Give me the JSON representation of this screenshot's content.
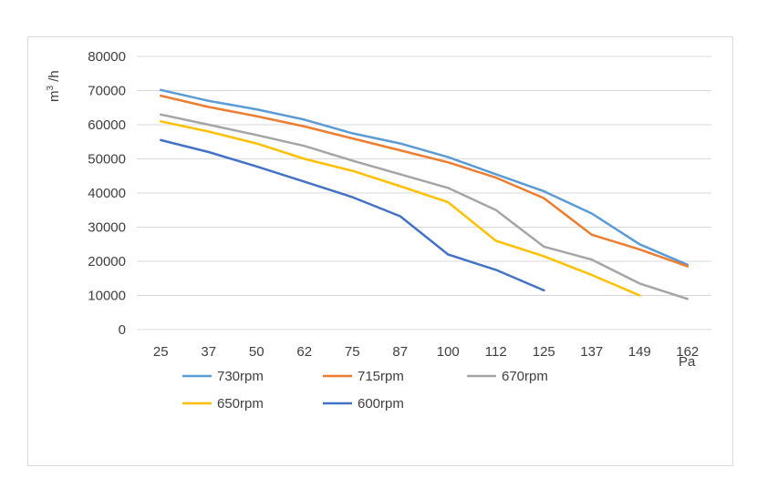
{
  "chart_data": {
    "type": "line",
    "title": "",
    "ylabel": "m³ /h",
    "ylabel_base": "m",
    "ylabel_sup": "3",
    "ylabel_rest": " /h",
    "xlabel": "Pa",
    "ylim": [
      0,
      80000
    ],
    "yticks": [
      "0",
      "10000",
      "20000",
      "30000",
      "40000",
      "50000",
      "60000",
      "70000",
      "80000"
    ],
    "categories": [
      "25",
      "37",
      "50",
      "62",
      "75",
      "87",
      "100",
      "112",
      "125",
      "137",
      "149",
      "162"
    ],
    "grid": true,
    "legend_position": "bottom",
    "series": [
      {
        "name": "730rpm",
        "color": "#5b9bd5",
        "values": [
          70200,
          67000,
          64500,
          61500,
          57500,
          54500,
          50500,
          45500,
          40500,
          34000,
          25000,
          19000
        ]
      },
      {
        "name": "715rpm",
        "color": "#ed7d31",
        "values": [
          68500,
          65200,
          62500,
          59500,
          56000,
          52500,
          49000,
          44500,
          38500,
          27800,
          23500,
          18500
        ]
      },
      {
        "name": "670rpm",
        "color": "#a5a5a5",
        "values": [
          63000,
          60000,
          57000,
          53800,
          49500,
          45500,
          41500,
          35000,
          24300,
          20500,
          13500,
          9000
        ]
      },
      {
        "name": "650rpm",
        "color": "#ffc000",
        "values": [
          61000,
          58000,
          54500,
          50000,
          46500,
          42000,
          37300,
          26000,
          21500,
          16000,
          10000,
          null
        ]
      },
      {
        "name": "600rpm",
        "color": "#4472c4",
        "values": [
          55500,
          52000,
          47800,
          43300,
          38800,
          33200,
          22000,
          17500,
          11500,
          null,
          null,
          null
        ]
      }
    ]
  }
}
